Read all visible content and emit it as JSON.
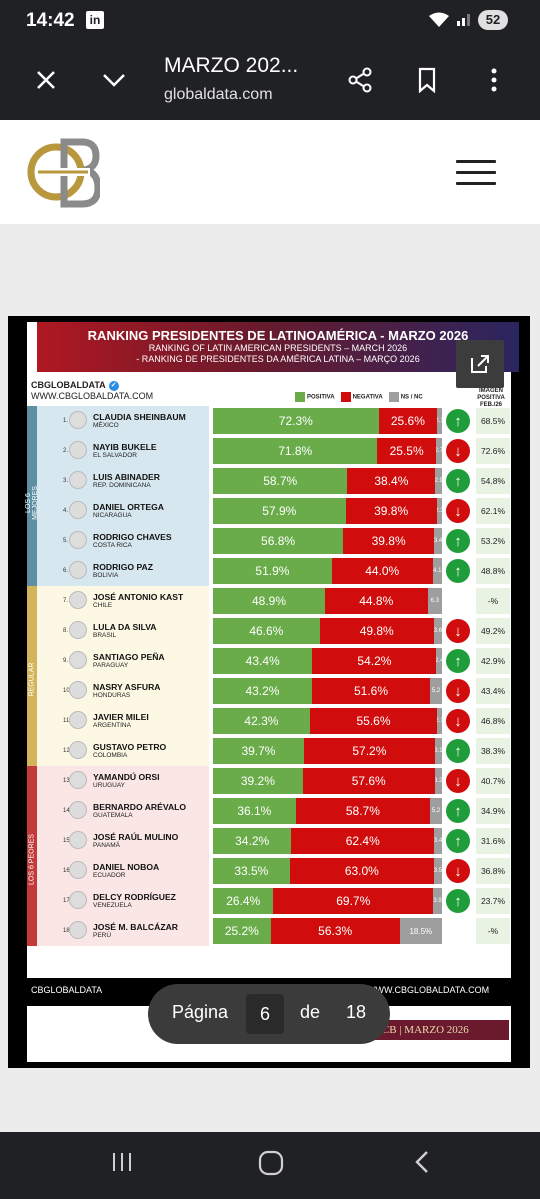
{
  "status_bar": {
    "time": "14:42",
    "linkedin": "in",
    "battery": "52"
  },
  "browser": {
    "title": "MARZO 202...",
    "url": "globaldata.com"
  },
  "infographic": {
    "title": "RANKING PRESIDENTES DE LATINOAMÉRICA - MARZO 2026",
    "subtitle_en": "RANKING OF LATIN AMERICAN PRESIDENTS – MARCH 2026",
    "subtitle_pt": "- RANKING DE PRESIDENTES DA AMÉRICA LATINA – MARÇO 2026",
    "brand": "CBGLOBALDATA",
    "website": "WWW.CBGLOBALDATA.COM",
    "legend": {
      "positive": "POSITIVA",
      "negative": "NEGATIVA",
      "nsnc": "NS / NC"
    },
    "image_header": "IMAGEN POSITIVA FEB./26",
    "groups": {
      "best": "LOS 6 MEJORES",
      "regular": "REGULAR",
      "worst": "LOS 6 PEORES"
    },
    "footer_brand": "CBGLOBALDATA",
    "footer_site": "WWW.CBGLOBALDATA.COM",
    "colors": {
      "positive": "#6aac4a",
      "negative": "#d00c0c",
      "nsnc": "#9e9e9e"
    },
    "rows": [
      {
        "rank": "1.",
        "name": "CLAUDIA SHEINBAUM",
        "country": "MÉXICO",
        "pos": "72.3%",
        "neg": "25.6%",
        "ns": "2.1",
        "pv": 72.3,
        "nv": 25.6,
        "trend": "up",
        "feb": "68.5%"
      },
      {
        "rank": "2.",
        "name": "NAYIB BUKELE",
        "country": "EL SALVADOR",
        "pos": "71.8%",
        "neg": "25.5%",
        "ns": "2.7",
        "pv": 71.8,
        "nv": 25.5,
        "trend": "down",
        "feb": "72.6%"
      },
      {
        "rank": "3.",
        "name": "LUIS ABINADER",
        "country": "REP. DOMINICANA",
        "pos": "58.7%",
        "neg": "38.4%",
        "ns": "2.9",
        "pv": 58.7,
        "nv": 38.4,
        "trend": "up",
        "feb": "54.8%"
      },
      {
        "rank": "4.",
        "name": "DANIEL ORTEGA",
        "country": "NICARAGUA",
        "pos": "57.9%",
        "neg": "39.8%",
        "ns": "2.3",
        "pv": 57.9,
        "nv": 39.8,
        "trend": "down",
        "feb": "62.1%"
      },
      {
        "rank": "5.",
        "name": "RODRIGO CHAVES",
        "country": "COSTA RICA",
        "pos": "56.8%",
        "neg": "39.8%",
        "ns": "3.4",
        "pv": 56.8,
        "nv": 39.8,
        "trend": "up",
        "feb": "53.2%"
      },
      {
        "rank": "6.",
        "name": "RODRIGO PAZ",
        "country": "BOLIVIA",
        "pos": "51.9%",
        "neg": "44.0%",
        "ns": "4.1",
        "pv": 51.9,
        "nv": 44.0,
        "trend": "up",
        "feb": "48.8%"
      },
      {
        "rank": "7.",
        "name": "JOSÉ ANTONIO KAST",
        "country": "CHILE",
        "pos": "48.9%",
        "neg": "44.8%",
        "ns": "6.3",
        "pv": 48.9,
        "nv": 44.8,
        "trend": "none",
        "feb": "-%"
      },
      {
        "rank": "8.",
        "name": "LULA DA SILVA",
        "country": "BRASIL",
        "pos": "46.6%",
        "neg": "49.8%",
        "ns": "3.6",
        "pv": 46.6,
        "nv": 49.8,
        "trend": "down",
        "feb": "49.2%"
      },
      {
        "rank": "9.",
        "name": "SANTIAGO PEÑA",
        "country": "PARAGUAY",
        "pos": "43.4%",
        "neg": "54.2%",
        "ns": "2.4",
        "pv": 43.4,
        "nv": 54.2,
        "trend": "up",
        "feb": "42.9%"
      },
      {
        "rank": "10.",
        "name": "NASRY ASFURA",
        "country": "HONDURAS",
        "pos": "43.2%",
        "neg": "51.6%",
        "ns": "5.2",
        "pv": 43.2,
        "nv": 51.6,
        "trend": "down",
        "feb": "43.4%"
      },
      {
        "rank": "11.",
        "name": "JAVIER MILEI",
        "country": "ARGENTINA",
        "pos": "42.3%",
        "neg": "55.6%",
        "ns": "2.1",
        "pv": 42.3,
        "nv": 55.6,
        "trend": "down",
        "feb": "46.8%"
      },
      {
        "rank": "12.",
        "name": "GUSTAVO PETRO",
        "country": "COLOMBIA",
        "pos": "39.7%",
        "neg": "57.2%",
        "ns": "3.1",
        "pv": 39.7,
        "nv": 57.2,
        "trend": "up",
        "feb": "38.3%"
      },
      {
        "rank": "13.",
        "name": "YAMANDÚ ORSI",
        "country": "URUGUAY",
        "pos": "39.2%",
        "neg": "57.6%",
        "ns": "3.2",
        "pv": 39.2,
        "nv": 57.6,
        "trend": "down",
        "feb": "40.7%"
      },
      {
        "rank": "14.",
        "name": "BERNARDO ARÉVALO",
        "country": "GUATEMALA",
        "pos": "36.1%",
        "neg": "58.7%",
        "ns": "5.2",
        "pv": 36.1,
        "nv": 58.7,
        "trend": "up",
        "feb": "34.9%"
      },
      {
        "rank": "15.",
        "name": "JOSÉ RAÚL MULINO",
        "country": "PANAMÁ",
        "pos": "34.2%",
        "neg": "62.4%",
        "ns": "3.4",
        "pv": 34.2,
        "nv": 62.4,
        "trend": "up",
        "feb": "31.6%"
      },
      {
        "rank": "16.",
        "name": "DANIEL NOBOA",
        "country": "ECUADOR",
        "pos": "33.5%",
        "neg": "63.0%",
        "ns": "3.5",
        "pv": 33.5,
        "nv": 63.0,
        "trend": "down",
        "feb": "36.8%"
      },
      {
        "rank": "17.",
        "name": "DELCY RODRÍGUEZ",
        "country": "VENEZUELA",
        "pos": "26.4%",
        "neg": "69.7%",
        "ns": "3.9",
        "pv": 26.4,
        "nv": 69.7,
        "trend": "up",
        "feb": "23.7%"
      },
      {
        "rank": "18.",
        "name": "JOSÉ M. BALCÁZAR",
        "country": "PERÚ",
        "pos": "25.2%",
        "neg": "56.3%",
        "ns": "18.5%",
        "pv": 25.2,
        "nv": 56.3,
        "trend": "none",
        "feb": "-%"
      }
    ]
  },
  "pager": {
    "label": "Página",
    "page": "6",
    "of": "de",
    "total": "18"
  },
  "next_page_fragment": "LATAM | CB | MARZO 2026"
}
